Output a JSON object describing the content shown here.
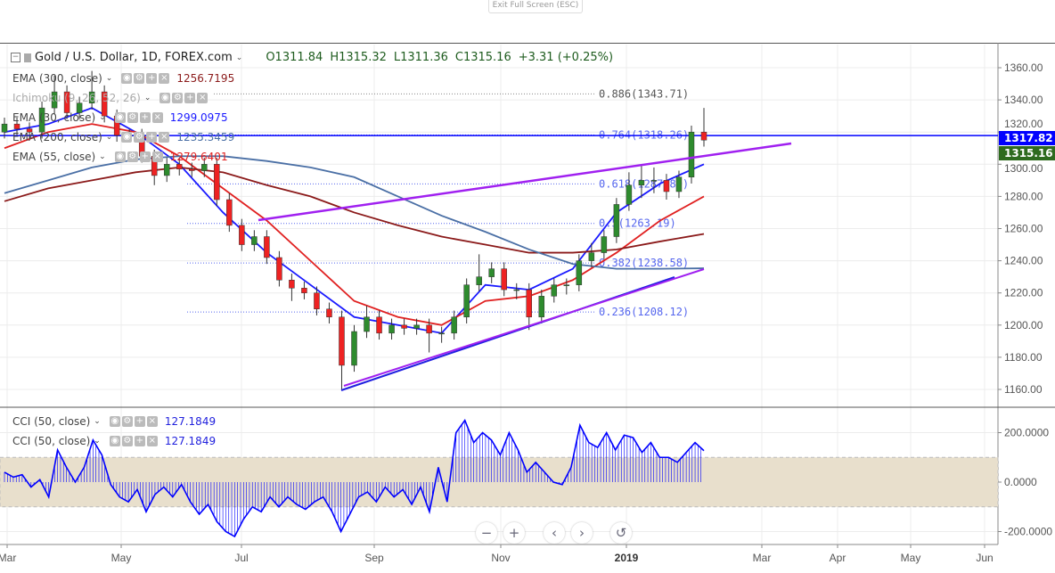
{
  "window": {
    "exit_fullscreen": "Exit Full Screen (ESC)"
  },
  "header": {
    "symbol": "Gold / U.S. Dollar, 1D, FOREX.com",
    "open": "O1311.84",
    "high": "H1315.32",
    "low": "L1311.36",
    "close": "C1315.16",
    "change": "+3.31 (+0.25%)"
  },
  "indicators": [
    {
      "label": "EMA (300, close)",
      "value": "1256.7195",
      "color": "#8b1a1a"
    },
    {
      "label": "Ichimoku (9, 26, 52, 26)",
      "value": "",
      "color": "#999999"
    },
    {
      "label": "EMA (30, close)",
      "value": "1299.0975",
      "color": "#1a1aff"
    },
    {
      "label": "EMA (200, close)",
      "value": "1235.3459",
      "color": "#4a6fa5"
    },
    {
      "label": "EMA (55, close)",
      "value": "1279.6401",
      "color": "#e02020"
    }
  ],
  "cci_legends": [
    {
      "label": "CCI (50, close)",
      "value": "127.1849"
    },
    {
      "label": "CCI (50, close)",
      "value": "127.1849"
    }
  ],
  "price_scale": {
    "current_line": "1317.82",
    "last_price": "1315.16",
    "current_line_color": "#0000ff",
    "last_price_color": "#2e6b1f"
  },
  "nav_buttons": {
    "zoom_out": "−",
    "zoom_in": "+",
    "left": "‹",
    "right": "›",
    "reset": "↺"
  },
  "chart_data": [
    {
      "type": "candlestick",
      "title": "Gold / U.S. Dollar, 1D, FOREX.com",
      "ylim": [
        1150,
        1370
      ],
      "yticks": [
        "1160.00",
        "1180.00",
        "1200.00",
        "1220.00",
        "1240.00",
        "1260.00",
        "1280.00",
        "1300.00",
        "1320.00",
        "1340.00",
        "1360.00"
      ],
      "xticks": [
        "Mar",
        "May",
        "Jul",
        "Sep",
        "Nov",
        "2019",
        "Mar",
        "Apr",
        "May",
        "Jun"
      ],
      "candles": [
        [
          1320,
          1329,
          1316,
          1325
        ],
        [
          1325,
          1329,
          1318,
          1322
        ],
        [
          1322,
          1326,
          1316,
          1320
        ],
        [
          1320,
          1339,
          1316,
          1335
        ],
        [
          1335,
          1355,
          1331,
          1345
        ],
        [
          1345,
          1349,
          1328,
          1332
        ],
        [
          1332,
          1342,
          1328,
          1338
        ],
        [
          1338,
          1358,
          1334,
          1345
        ],
        [
          1345,
          1349,
          1326,
          1330
        ],
        [
          1330,
          1334,
          1314,
          1318
        ],
        [
          1318,
          1322,
          1314,
          1318
        ],
        [
          1318,
          1322,
          1301,
          1305
        ],
        [
          1305,
          1309,
          1287,
          1293
        ],
        [
          1293,
          1304,
          1289,
          1300
        ],
        [
          1300,
          1304,
          1293,
          1297
        ],
        [
          1297,
          1301,
          1292,
          1296
        ],
        [
          1296,
          1304,
          1292,
          1300
        ],
        [
          1300,
          1304,
          1274,
          1278
        ],
        [
          1278,
          1282,
          1258,
          1262
        ],
        [
          1262,
          1266,
          1246,
          1250
        ],
        [
          1250,
          1259,
          1246,
          1255
        ],
        [
          1255,
          1259,
          1238,
          1242
        ],
        [
          1242,
          1246,
          1224,
          1228
        ],
        [
          1228,
          1232,
          1215,
          1223
        ],
        [
          1223,
          1227,
          1216,
          1220
        ],
        [
          1220,
          1224,
          1206,
          1210
        ],
        [
          1210,
          1214,
          1201,
          1205
        ],
        [
          1205,
          1209,
          1160,
          1175
        ],
        [
          1175,
          1200,
          1171,
          1196
        ],
        [
          1196,
          1212,
          1192,
          1205
        ],
        [
          1205,
          1209,
          1191,
          1195
        ],
        [
          1195,
          1204,
          1191,
          1200
        ],
        [
          1200,
          1204,
          1194,
          1198
        ],
        [
          1198,
          1204,
          1194,
          1200
        ],
        [
          1200,
          1204,
          1183,
          1195
        ],
        [
          1195,
          1199,
          1189,
          1195
        ],
        [
          1195,
          1209,
          1191,
          1205
        ],
        [
          1205,
          1229,
          1201,
          1225
        ],
        [
          1225,
          1244,
          1221,
          1230
        ],
        [
          1230,
          1239,
          1226,
          1235
        ],
        [
          1235,
          1239,
          1218,
          1222
        ],
        [
          1222,
          1226,
          1216,
          1222
        ],
        [
          1222,
          1226,
          1197,
          1205
        ],
        [
          1205,
          1222,
          1201,
          1218
        ],
        [
          1218,
          1229,
          1214,
          1225
        ],
        [
          1225,
          1229,
          1219,
          1225
        ],
        [
          1225,
          1244,
          1221,
          1240
        ],
        [
          1240,
          1251,
          1236,
          1245
        ],
        [
          1245,
          1259,
          1241,
          1255
        ],
        [
          1255,
          1279,
          1251,
          1275
        ],
        [
          1275,
          1295,
          1271,
          1287
        ],
        [
          1287,
          1300,
          1279,
          1290
        ],
        [
          1290,
          1298,
          1282,
          1290
        ],
        [
          1290,
          1294,
          1278,
          1283
        ],
        [
          1283,
          1296,
          1279,
          1292
        ],
        [
          1292,
          1324,
          1288,
          1320
        ],
        [
          1320,
          1335,
          1311,
          1315
        ]
      ],
      "series": [
        {
          "name": "EMA (30, close)",
          "color": "#1a1aff",
          "values": [
            1320,
            1325,
            1335,
            1320,
            1300,
            1270,
            1245,
            1225,
            1205,
            1200,
            1195,
            1225,
            1222,
            1235,
            1270,
            1288,
            1300
          ]
        },
        {
          "name": "EMA (55, close)",
          "color": "#e02020",
          "values": [
            1310,
            1320,
            1325,
            1320,
            1305,
            1285,
            1265,
            1240,
            1215,
            1205,
            1200,
            1215,
            1218,
            1228,
            1245,
            1265,
            1280
          ]
        },
        {
          "name": "EMA (300, close)",
          "color": "#8b1a1a",
          "values": [
            1277,
            1285,
            1290,
            1295,
            1298,
            1295,
            1287,
            1280,
            1270,
            1262,
            1255,
            1250,
            1245,
            1245,
            1247,
            1252,
            1256.7
          ]
        },
        {
          "name": "EMA (200, close)",
          "color": "#4a6fa5",
          "values": [
            1282,
            1290,
            1298,
            1303,
            1305,
            1305,
            1302,
            1298,
            1292,
            1280,
            1268,
            1258,
            1247,
            1238,
            1235,
            1235,
            1235.3
          ]
        }
      ],
      "horizontal_line": 1317.82,
      "fibonacci": [
        {
          "level": "0.886",
          "price": 1343.71,
          "label": "0.886(1343.71)"
        },
        {
          "level": "0.764",
          "price": 1318.26,
          "label": "0.764(1318.26)"
        },
        {
          "level": "0.618",
          "price": 1287.8,
          "label": "0.618(1287.80)"
        },
        {
          "level": "0.5",
          "price": 1263.19,
          "label": "0.5(1263.19)"
        },
        {
          "level": "0.382",
          "price": 1238.58,
          "label": "0.382(1238.58)"
        },
        {
          "level": "0.236",
          "price": 1208.12,
          "label": "0.236(1208.12)"
        }
      ]
    },
    {
      "type": "line",
      "title": "CCI (50, close)",
      "ylim": [
        -230,
        260
      ],
      "yticks": [
        "200.0000",
        "0.0000",
        "-200.0000"
      ],
      "band": [
        -100,
        100
      ],
      "band_color": "#e8dfcc",
      "color": "#0000ff",
      "values": [
        40,
        20,
        30,
        -20,
        10,
        -60,
        130,
        60,
        0,
        60,
        170,
        110,
        -10,
        -60,
        -80,
        -30,
        -120,
        -50,
        -20,
        -60,
        -10,
        -80,
        -130,
        -90,
        -160,
        -200,
        -220,
        -150,
        -100,
        -120,
        -60,
        -100,
        -60,
        -90,
        -110,
        -80,
        -60,
        -120,
        -200,
        -130,
        -60,
        -40,
        -80,
        -20,
        -60,
        -30,
        -90,
        -20,
        -120,
        60,
        -80,
        200,
        250,
        160,
        200,
        170,
        110,
        200,
        130,
        40,
        80,
        40,
        0,
        -10,
        60,
        230,
        160,
        140,
        200,
        130,
        190,
        180,
        120,
        160,
        100,
        100,
        80,
        120,
        160,
        127
      ]
    }
  ]
}
